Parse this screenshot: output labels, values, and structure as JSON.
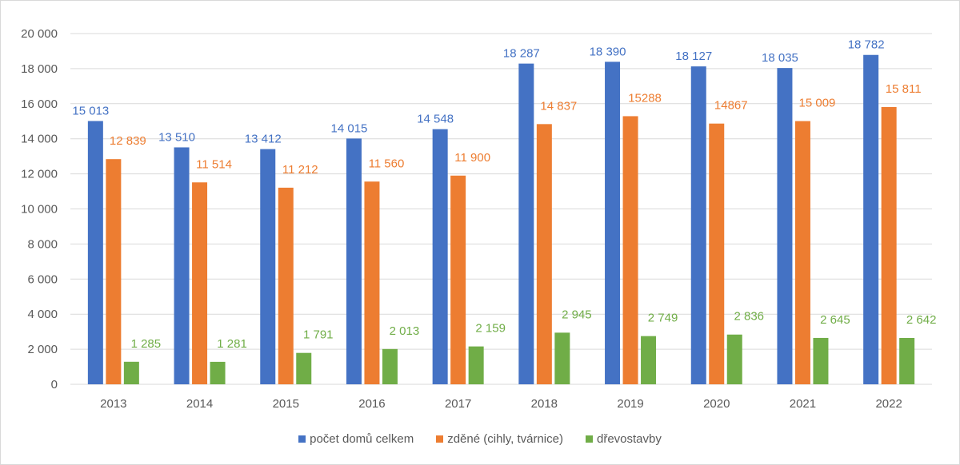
{
  "chart_data": {
    "type": "bar",
    "title": "",
    "xlabel": "",
    "ylabel": "",
    "categories": [
      "2013",
      "2014",
      "2015",
      "2016",
      "2017",
      "2018",
      "2019",
      "2020",
      "2021",
      "2022"
    ],
    "ylim": [
      0,
      20000
    ],
    "y_ticks": [
      0,
      2000,
      4000,
      6000,
      8000,
      10000,
      12000,
      14000,
      16000,
      18000,
      20000
    ],
    "y_tick_labels": [
      "0",
      "2 000",
      "4 000",
      "6 000",
      "8 000",
      "10 000",
      "12 000",
      "14 000",
      "16 000",
      "18 000",
      "20 000"
    ],
    "grid": true,
    "legend_position": "bottom",
    "series": [
      {
        "name": "počet domů celkem",
        "color": "#4472c4",
        "values": [
          15013,
          13510,
          13412,
          14015,
          14548,
          18287,
          18390,
          18127,
          18035,
          18782
        ],
        "labels": [
          "15 013",
          "13 510",
          "13 412",
          "14 015",
          "14 548",
          "18 287",
          "18 390",
          "18 127",
          "18 035",
          "18 782"
        ]
      },
      {
        "name": "zděné (cihly, tvárnice)",
        "color": "#ed7d31",
        "values": [
          12839,
          11514,
          11212,
          11560,
          11900,
          14837,
          15288,
          14867,
          15009,
          15811
        ],
        "labels": [
          "12 839",
          "11 514",
          "11 212",
          "11 560",
          "11 900",
          "14 837",
          "15288",
          "14867",
          "15 009",
          "15 811"
        ]
      },
      {
        "name": "dřevostavby",
        "color": "#70ad47",
        "values": [
          1285,
          1281,
          1791,
          2013,
          2159,
          2945,
          2749,
          2836,
          2645,
          2642
        ],
        "labels": [
          "1 285",
          "1 281",
          "1 791",
          "2 013",
          "2 159",
          "2 945",
          "2 749",
          "2 836",
          "2 645",
          "2 642"
        ]
      }
    ]
  }
}
